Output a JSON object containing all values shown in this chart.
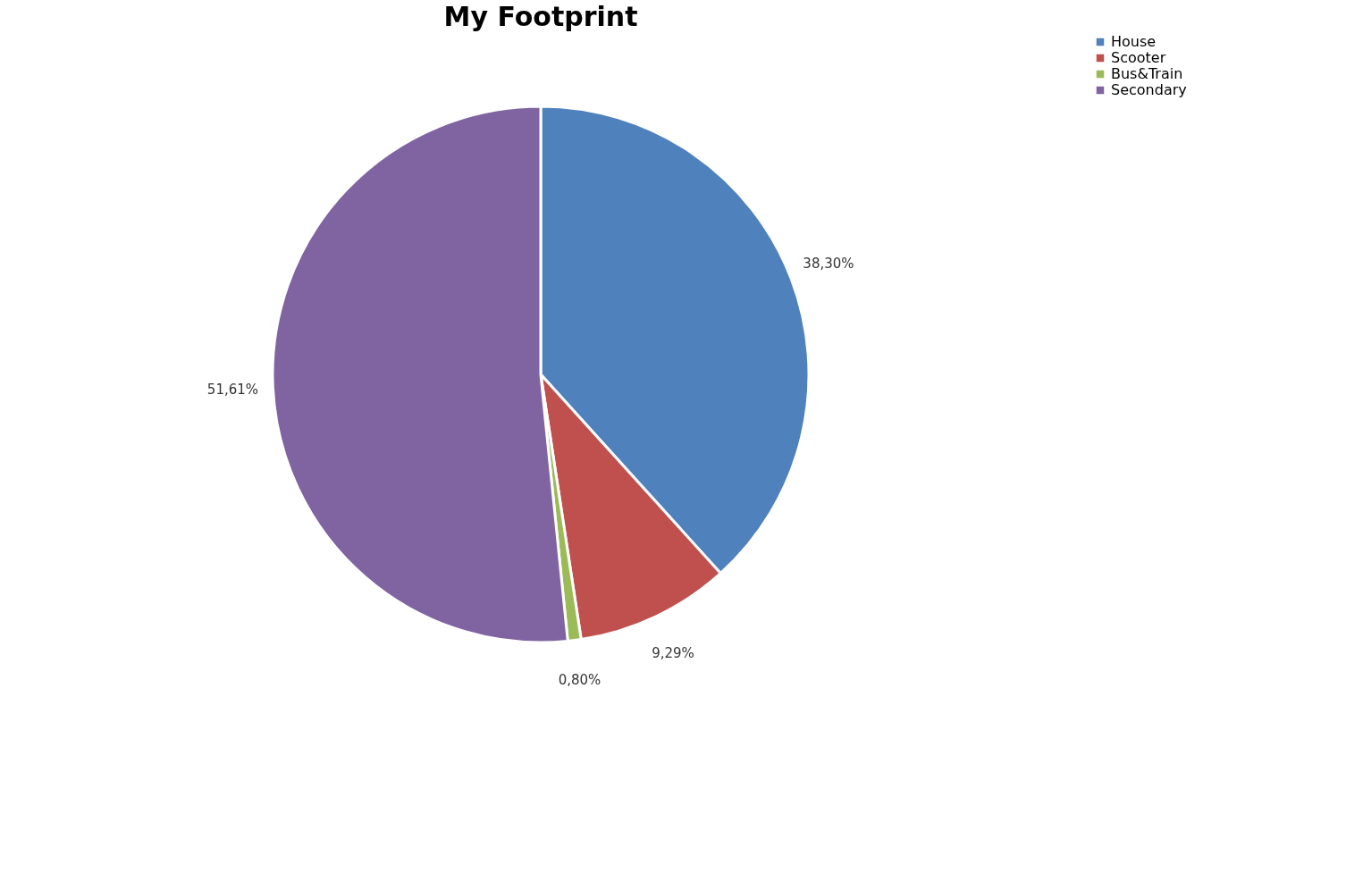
{
  "chart_data": {
    "type": "pie",
    "title": "My Footprint",
    "categories": [
      "House",
      "Scooter",
      "Bus&Train",
      "Secondary"
    ],
    "values": [
      38.3,
      9.29,
      0.8,
      51.61
    ],
    "value_labels": [
      "38,30%",
      "9,29%",
      "0,80%",
      "51,61%"
    ],
    "colors": [
      "#4f81bd",
      "#c0504d",
      "#9bbb59",
      "#8064a2"
    ],
    "legend": "right"
  }
}
